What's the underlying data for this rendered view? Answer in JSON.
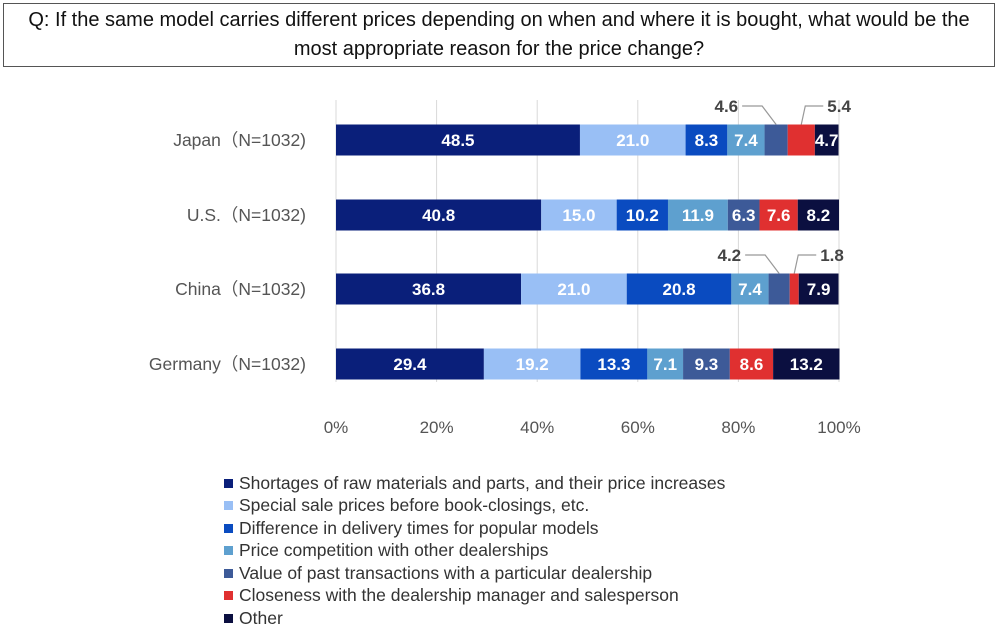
{
  "question": "Q: If the same model carries different prices depending on when and where it is bought, what would be the most appropriate reason for the price change?",
  "colors": [
    "#0a1f7a",
    "#99bff5",
    "#0a4bc0",
    "#5ea0cf",
    "#3d5a98",
    "#e03030",
    "#0b0f40"
  ],
  "value_label_colors": [
    "#ffffff",
    "#ffffff",
    "#ffffff",
    "#ffffff",
    "#ffffff",
    "#ffffff",
    "#ffffff"
  ],
  "chart_data": {
    "type": "bar",
    "orientation": "horizontal",
    "stacked": true,
    "categories": [
      "Japan（N=1032)",
      "U.S.（N=1032)",
      "China（N=1032)",
      "Germany（N=1032)"
    ],
    "series": [
      {
        "name": "Shortages of raw materials and parts, and their price increases",
        "values": [
          48.5,
          40.8,
          36.8,
          29.4
        ]
      },
      {
        "name": "Special sale prices before book-closings, etc.",
        "values": [
          21.0,
          15.0,
          21.0,
          19.2
        ]
      },
      {
        "name": "Difference in delivery times for popular models",
        "values": [
          8.3,
          10.2,
          20.8,
          13.3
        ]
      },
      {
        "name": "Price competition with other dealerships",
        "values": [
          7.4,
          11.9,
          7.4,
          7.1
        ]
      },
      {
        "name": "Value of past transactions with a particular dealership",
        "values": [
          4.6,
          6.3,
          4.2,
          9.3
        ]
      },
      {
        "name": "Closeness with the dealership manager and salesperson",
        "values": [
          5.4,
          7.6,
          1.8,
          8.6
        ]
      },
      {
        "name": "Other",
        "values": [
          4.7,
          8.2,
          7.9,
          13.2
        ]
      }
    ],
    "value_labels": [
      [
        "48.5",
        "21.0",
        "8.3",
        "7.4",
        "4.6",
        "5.4",
        "4.7"
      ],
      [
        "40.8",
        "15.0",
        "10.2",
        "11.9",
        "6.3",
        "7.6",
        "8.2"
      ],
      [
        "36.8",
        "21.0",
        "20.8",
        "7.4",
        "4.2",
        "1.8",
        "7.9"
      ],
      [
        "29.4",
        "19.2",
        "13.3",
        "7.1",
        "9.3",
        "8.6",
        "13.2"
      ]
    ],
    "callout_labels": [
      [
        0,
        4
      ],
      [
        0,
        5
      ],
      [
        2,
        4
      ],
      [
        2,
        5
      ]
    ],
    "x_ticks": [
      "0%",
      "20%",
      "40%",
      "60%",
      "80%",
      "100%"
    ],
    "xlim": [
      0,
      100
    ],
    "grid": true,
    "legend_position": "bottom"
  }
}
